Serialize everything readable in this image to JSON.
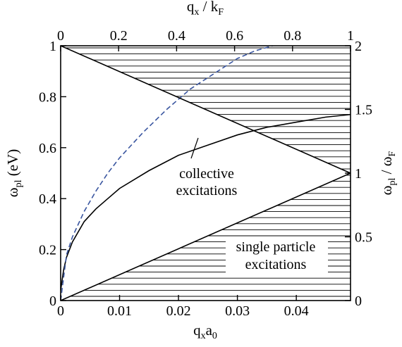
{
  "chart_data": {
    "type": "line",
    "x_bottom": {
      "label_main": "q",
      "label_sub1": "x",
      "label_mid": "a",
      "label_sub2": "0",
      "ticks": [
        0,
        0.01,
        0.02,
        0.03,
        0.04
      ],
      "tick_labels": [
        "0",
        "0.01",
        "0.02",
        "0.03",
        "0.04"
      ],
      "range": [
        0,
        0.0492
      ]
    },
    "x_top": {
      "label_main": "q",
      "label_sub1": "x",
      "label_mid": " / k",
      "label_sub2": "F",
      "ticks": [
        0,
        0.2,
        0.4,
        0.6,
        0.8,
        1
      ],
      "tick_labels": [
        "0",
        "0.2",
        "0.4",
        "0.6",
        "0.8",
        "1"
      ],
      "range": [
        0,
        1
      ]
    },
    "y_left": {
      "label_main": "ω",
      "label_sub": "pl",
      "label_rest": " (eV)",
      "ticks": [
        0,
        0.2,
        0.4,
        0.6,
        0.8,
        1
      ],
      "tick_labels": [
        "0",
        "0.2",
        "0.4",
        "0.6",
        "0.8",
        "1"
      ],
      "range": [
        0,
        1
      ]
    },
    "y_right": {
      "label_main": "ω",
      "label_sub1": "pl",
      "label_mid": " / ω",
      "label_sub2": "F",
      "ticks": [
        0,
        0.5,
        1,
        1.5,
        2
      ],
      "tick_labels": [
        "0",
        "0.5",
        "1",
        "1.5",
        "2"
      ],
      "range": [
        0,
        2
      ]
    },
    "series": [
      {
        "style": "solid",
        "color": "#000000",
        "x": [
          0,
          0.0005,
          0.001,
          0.002,
          0.004,
          0.006,
          0.008,
          0.01,
          0.015,
          0.02,
          0.025,
          0.03,
          0.035,
          0.04,
          0.045,
          0.0492
        ],
        "y": [
          0.04,
          0.12,
          0.17,
          0.23,
          0.31,
          0.36,
          0.4,
          0.44,
          0.51,
          0.57,
          0.61,
          0.65,
          0.68,
          0.7,
          0.72,
          0.73
        ]
      },
      {
        "style": "dashed",
        "color": "#3a56a0",
        "x": [
          0,
          0.001,
          0.002,
          0.004,
          0.006,
          0.008,
          0.01,
          0.014,
          0.018,
          0.022,
          0.026,
          0.03,
          0.033,
          0.036
        ],
        "y": [
          0.0,
          0.18,
          0.25,
          0.35,
          0.43,
          0.5,
          0.56,
          0.66,
          0.75,
          0.83,
          0.89,
          0.95,
          0.98,
          1.0
        ]
      },
      {
        "style": "solid",
        "color": "#000000",
        "x": [
          0,
          0.0492
        ],
        "y": [
          1.0,
          0.5
        ]
      },
      {
        "style": "solid",
        "color": "#000000",
        "x": [
          0,
          0.0492
        ],
        "y": [
          0.0,
          0.5
        ]
      }
    ],
    "hatched_regions": [
      {
        "name": "upper",
        "polygon_x": [
          0,
          0.0492,
          0.0492
        ],
        "polygon_y": [
          1.0,
          1.0,
          0.5
        ]
      },
      {
        "name": "lower",
        "polygon_x": [
          0,
          0.0492,
          0.0492
        ],
        "polygon_y": [
          0.0,
          0.5,
          0.0
        ]
      }
    ],
    "annotations": {
      "collective_line1": "collective",
      "collective_line2": "excitations",
      "single_line1": "single particle",
      "single_line2": "excitations"
    }
  }
}
